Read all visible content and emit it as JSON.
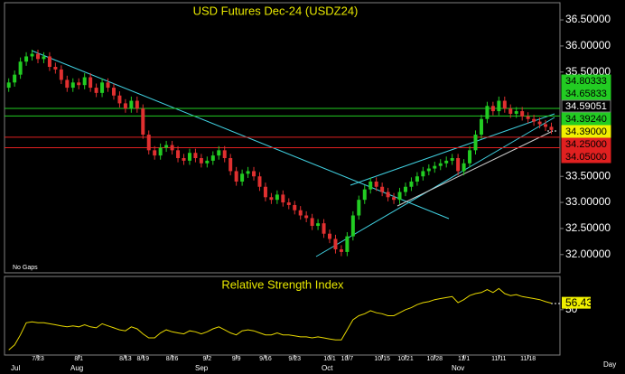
{
  "chart_data": [
    {
      "type": "candlestick",
      "title": "USD Futures Dec-24 (USDZ24)",
      "note": "No Gaps",
      "categories": [
        null,
        null,
        null,
        null,
        null,
        "7/23",
        null,
        null,
        null,
        null,
        null,
        null,
        "8/1",
        null,
        null,
        null,
        null,
        null,
        null,
        null,
        "8/13",
        null,
        null,
        "8/19",
        null,
        null,
        null,
        null,
        "8/26",
        null,
        null,
        null,
        null,
        null,
        "9/2",
        null,
        null,
        null,
        null,
        "9/9",
        null,
        null,
        null,
        null,
        "9/16",
        null,
        null,
        null,
        null,
        "9/23",
        null,
        null,
        null,
        null,
        null,
        "10/1",
        null,
        null,
        "10/7",
        null,
        null,
        null,
        null,
        null,
        "10/15",
        null,
        null,
        null,
        "10/21",
        null,
        null,
        null,
        null,
        "10/28",
        null,
        null,
        null,
        null,
        "11/1",
        null,
        null,
        null,
        null,
        null,
        "11/11",
        null,
        null,
        null,
        null,
        "11/18",
        null,
        null,
        null,
        null
      ],
      "months": [
        "Jul",
        "Aug",
        "Sep",
        "Oct",
        "Nov"
      ],
      "x_label": "Day",
      "open": [
        35.2,
        35.3,
        35.45,
        35.7,
        35.8,
        35.85,
        35.75,
        35.8,
        35.6,
        35.55,
        35.35,
        35.2,
        35.3,
        35.25,
        35.4,
        35.2,
        35.1,
        35.3,
        35.2,
        35.05,
        34.9,
        34.8,
        34.95,
        34.8,
        34.3,
        34.0,
        33.9,
        34.05,
        34.1,
        34.0,
        33.85,
        33.8,
        33.95,
        33.85,
        33.75,
        33.8,
        33.9,
        34.0,
        33.85,
        33.6,
        33.4,
        33.55,
        33.6,
        33.5,
        33.3,
        33.1,
        33.05,
        33.15,
        33.0,
        32.95,
        32.85,
        32.75,
        32.7,
        32.55,
        32.6,
        32.4,
        32.3,
        32.1,
        32.05,
        32.35,
        32.75,
        33.05,
        33.25,
        33.4,
        33.3,
        33.2,
        33.1,
        33.05,
        33.2,
        33.3,
        33.4,
        33.5,
        33.6,
        33.65,
        33.7,
        33.75,
        33.8,
        33.85,
        33.6,
        33.75,
        34.0,
        34.3,
        34.6,
        34.85,
        34.75,
        34.95,
        34.8,
        34.7,
        34.75,
        34.65,
        34.6,
        34.55,
        34.5,
        34.45
      ],
      "high": [
        35.38,
        35.53,
        35.78,
        35.88,
        35.93,
        35.93,
        35.88,
        35.88,
        35.68,
        35.63,
        35.43,
        35.38,
        35.38,
        35.48,
        35.48,
        35.28,
        35.38,
        35.38,
        35.28,
        35.13,
        34.98,
        35.03,
        35.03,
        34.88,
        34.38,
        34.08,
        34.13,
        34.18,
        34.18,
        34.08,
        33.93,
        34.03,
        34.03,
        33.93,
        33.88,
        33.98,
        34.08,
        34.08,
        33.93,
        33.68,
        33.63,
        33.68,
        33.68,
        33.58,
        33.38,
        33.18,
        33.23,
        33.23,
        33.08,
        33.03,
        32.93,
        32.83,
        32.78,
        32.68,
        32.68,
        32.48,
        32.38,
        32.18,
        32.43,
        32.83,
        33.13,
        33.33,
        33.48,
        33.48,
        33.38,
        33.28,
        33.18,
        33.28,
        33.38,
        33.48,
        33.58,
        33.68,
        33.73,
        33.78,
        33.83,
        33.88,
        33.93,
        33.93,
        33.83,
        34.08,
        34.38,
        34.68,
        34.93,
        34.93,
        35.03,
        35.03,
        34.88,
        34.83,
        34.83,
        34.73,
        34.68,
        34.63,
        34.58,
        34.53
      ],
      "low": [
        35.12,
        35.22,
        35.37,
        35.62,
        35.72,
        35.67,
        35.67,
        35.52,
        35.47,
        35.27,
        35.12,
        35.12,
        35.17,
        35.17,
        35.12,
        35.02,
        35.02,
        35.12,
        34.97,
        34.82,
        34.72,
        34.72,
        34.72,
        34.22,
        33.92,
        33.82,
        33.82,
        33.97,
        33.92,
        33.77,
        33.72,
        33.72,
        33.77,
        33.67,
        33.67,
        33.72,
        33.82,
        33.77,
        33.52,
        33.32,
        33.32,
        33.47,
        33.42,
        33.22,
        33.02,
        32.97,
        32.97,
        32.92,
        32.87,
        32.77,
        32.67,
        32.62,
        32.47,
        32.47,
        32.32,
        32.22,
        32.02,
        31.97,
        31.97,
        32.27,
        32.67,
        32.97,
        33.17,
        33.22,
        33.12,
        33.02,
        32.97,
        32.97,
        33.12,
        33.22,
        33.32,
        33.42,
        33.52,
        33.57,
        33.62,
        33.67,
        33.72,
        33.52,
        33.52,
        33.67,
        33.92,
        34.22,
        34.52,
        34.67,
        34.67,
        34.72,
        34.62,
        34.62,
        34.57,
        34.52,
        34.47,
        34.42,
        34.37,
        34.31
      ],
      "close": [
        35.3,
        35.45,
        35.7,
        35.8,
        35.85,
        35.75,
        35.8,
        35.6,
        35.55,
        35.35,
        35.2,
        35.3,
        35.25,
        35.4,
        35.2,
        35.1,
        35.3,
        35.2,
        35.05,
        34.9,
        34.8,
        34.95,
        34.8,
        34.3,
        34.0,
        33.9,
        34.05,
        34.1,
        34.0,
        33.85,
        33.8,
        33.95,
        33.85,
        33.75,
        33.8,
        33.9,
        34.0,
        33.85,
        33.6,
        33.4,
        33.55,
        33.6,
        33.5,
        33.3,
        33.1,
        33.05,
        33.15,
        33.0,
        32.95,
        32.85,
        32.75,
        32.7,
        32.55,
        32.6,
        32.4,
        32.3,
        32.1,
        32.05,
        32.35,
        32.75,
        33.05,
        33.25,
        33.4,
        33.3,
        33.2,
        33.1,
        33.05,
        33.2,
        33.3,
        33.4,
        33.5,
        33.6,
        33.65,
        33.7,
        33.75,
        33.8,
        33.85,
        33.6,
        33.75,
        34.0,
        34.3,
        34.6,
        34.85,
        34.75,
        34.95,
        34.8,
        34.7,
        34.75,
        34.65,
        34.6,
        34.55,
        34.5,
        34.45,
        34.39
      ],
      "up_color": "#22cc22",
      "down_color": "#e03030",
      "ylim": [
        31.65,
        36.83
      ],
      "yticks": [
        {
          "value": 36.5,
          "label": "36.50000"
        },
        {
          "value": 36,
          "label": "36.00000"
        },
        {
          "value": 35.5,
          "label": "35.50000"
        },
        {
          "value": 33.5,
          "label": "33.50000"
        },
        {
          "value": 33,
          "label": "33.00000"
        },
        {
          "value": 32.5,
          "label": "32.50000"
        },
        {
          "value": 32,
          "label": "32.00000"
        }
      ],
      "levels": [
        {
          "value": 34.80333,
          "color": "#22cc22",
          "text_color": "#000000",
          "line": true
        },
        {
          "value": 34.65833,
          "color": "#22cc22",
          "text_color": "#000000",
          "line": true
        },
        {
          "value": 34.59051,
          "color": "#000000",
          "text_color": "#ffffff",
          "line": false
        },
        {
          "value": 34.3924,
          "label": "34.39240",
          "color": "#22cc22",
          "text_color": "#000000",
          "line": false
        },
        {
          "value": 34.39,
          "label": "34.39000",
          "color": "#f0f000",
          "text_color": "#000000",
          "line": false
        },
        {
          "value": 34.25,
          "label": "34.25000",
          "color": "#e02020",
          "text_color": "#000000",
          "line": true
        },
        {
          "value": 34.05,
          "label": "34.05000",
          "color": "#e02020",
          "text_color": "#000000",
          "line": true
        }
      ]
    },
    {
      "type": "line",
      "title": "Relative Strength Index",
      "color": "#e8d800",
      "values": [
        10,
        15,
        25,
        37,
        38,
        37,
        37,
        36,
        35,
        34,
        33,
        34,
        33,
        35,
        33,
        32,
        36,
        34,
        32,
        30,
        29,
        33,
        31,
        26,
        22,
        22,
        27,
        30,
        28,
        27,
        26,
        29,
        28,
        26,
        28,
        31,
        33,
        30,
        27,
        25,
        29,
        30,
        29,
        27,
        25,
        25,
        27,
        25,
        25,
        24,
        23,
        23,
        22,
        23,
        22,
        21,
        20,
        20,
        30,
        40,
        44,
        46,
        49,
        47,
        46,
        44,
        44,
        47,
        50,
        52,
        55,
        57,
        58,
        60,
        61,
        62,
        63,
        57,
        60,
        64,
        66,
        67,
        70,
        67,
        71,
        66,
        64,
        65,
        63,
        62,
        61,
        60,
        58,
        56.43
      ],
      "last_color": "#f0f000",
      "ylim": [
        5,
        83
      ],
      "yticks": [
        50
      ]
    }
  ]
}
